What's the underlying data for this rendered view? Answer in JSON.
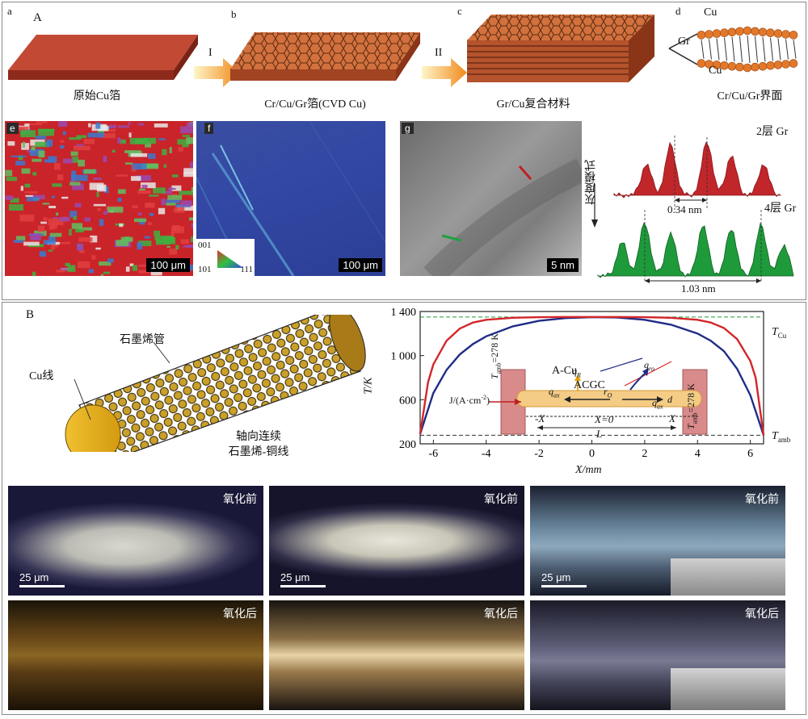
{
  "section_A": {
    "section_label": "A",
    "panel_letters": {
      "a": "a",
      "b": "b",
      "c": "c",
      "d": "d",
      "e": "e",
      "f": "f",
      "g": "g"
    },
    "step_arrows": [
      "I",
      "II"
    ],
    "captions": {
      "a": "原始Cu箔",
      "b": "Cr/Cu/Gr箔(CVD Cu)",
      "c": "Gr/Cu复合材料",
      "d": "Cr/Cu/Gr界面"
    },
    "interface_labels": {
      "top": "Cu",
      "middle": "Gr",
      "bottom": "Cu"
    },
    "scale_bars": {
      "e": "100 μm",
      "f": "100 μm",
      "g": "5 nm"
    },
    "ipf_key": {
      "t001": "001",
      "t101": "101",
      "t111": "111"
    },
    "gray_profile": {
      "ylabel": "灰度模式",
      "label_2": "2层 Gr",
      "label_4": "4层 Gr",
      "d1": "0.34 nm",
      "d2": "1.03 nm",
      "colors": {
        "top": "#c0262a",
        "bottom": "#1e9a3a"
      }
    }
  },
  "section_B": {
    "section_label": "B",
    "wire_labels": {
      "cu": "Cu线",
      "tube": "石墨烯管",
      "desc1": "轴向连续",
      "desc2": "石墨烯-铜线"
    },
    "micro_panels": [
      {
        "tag": "氧化前",
        "scale": "25 μm"
      },
      {
        "tag": "氧化前",
        "scale": "25 μm"
      },
      {
        "tag": "氧化前",
        "scale": "25 μm"
      },
      {
        "tag": "氧化后",
        "scale": ""
      },
      {
        "tag": "氧化后",
        "scale": ""
      },
      {
        "tag": "氧化后",
        "scale": ""
      }
    ]
  },
  "chart_data": {
    "type": "line",
    "xlabel": "X/mm",
    "ylabel": "T/K",
    "xlim": [
      -6.5,
      6.5
    ],
    "ylim": [
      200,
      1400
    ],
    "xticks": [
      -6,
      -4,
      -2,
      0,
      2,
      4,
      6
    ],
    "yticks": [
      200,
      600,
      1000,
      1400
    ],
    "ytick_labels": [
      "200",
      "600",
      "1 000",
      "1 400"
    ],
    "reference_lines": [
      {
        "label": "T",
        "sub": "Cu",
        "y": 1350,
        "color": "#1a9a3a"
      },
      {
        "label": "T",
        "sub": "amb",
        "y": 278,
        "color": "#333333"
      }
    ],
    "series": [
      {
        "name": "A-Cu",
        "color": "#1f2d86",
        "x": [
          -6.5,
          -6,
          -5.5,
          -5,
          -4.5,
          -4,
          -3,
          -2,
          -1,
          0,
          1,
          2,
          3,
          4,
          4.5,
          5,
          5.5,
          6,
          6.5
        ],
        "y": [
          290,
          660,
          870,
          1010,
          1105,
          1175,
          1265,
          1315,
          1340,
          1348,
          1345,
          1325,
          1280,
          1200,
          1135,
          1040,
          880,
          640,
          280
        ]
      },
      {
        "name": "ACGC",
        "color": "#d4252a",
        "x": [
          -6.5,
          -6.2,
          -6,
          -5.5,
          -5,
          -4.5,
          -4,
          -3,
          -2,
          -1,
          0,
          1,
          2,
          3,
          4,
          4.5,
          5,
          5.5,
          6,
          6.2,
          6.5
        ],
        "y": [
          290,
          760,
          920,
          1135,
          1245,
          1300,
          1325,
          1343,
          1348,
          1350,
          1350,
          1350,
          1348,
          1343,
          1325,
          1300,
          1250,
          1150,
          950,
          800,
          280
        ]
      }
    ],
    "inset": {
      "t_left": "T",
      "t_left_rest": "=278 K",
      "t_right": "T",
      "t_right_rest": "=278 K",
      "amb": "amb",
      "current": "J/(A·cm",
      "current_sup": "-2",
      "current_tail": ")",
      "qR": "q",
      "qR_sub": "R",
      "qro": "q",
      "qro_sub": "ro",
      "qax_l": "q",
      "qax_r": "q",
      "ax": "ax",
      "ro": "r",
      "O": "O",
      "d": "d",
      "neg_x": "-X",
      "x0": "X=0",
      "pos_x": "X",
      "L": "L"
    }
  }
}
